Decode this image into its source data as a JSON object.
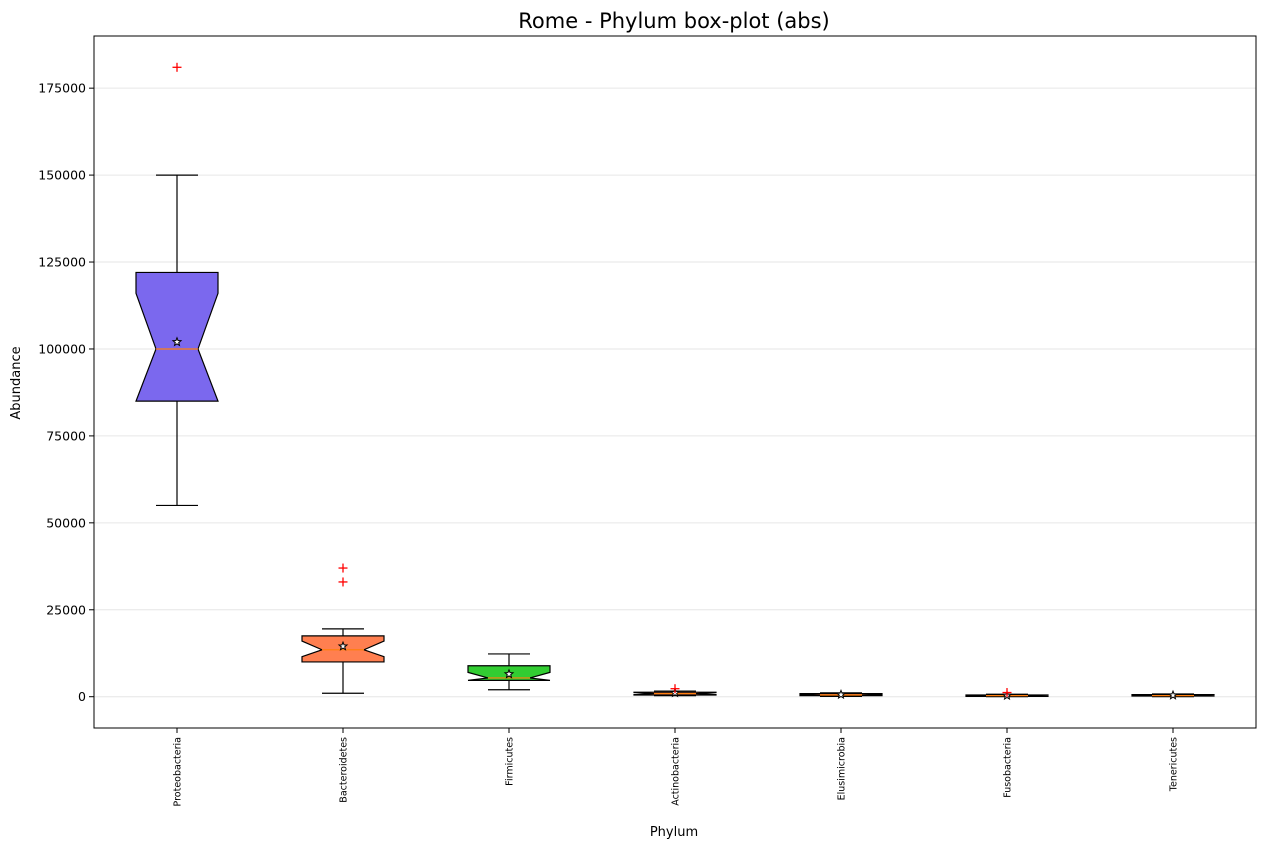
{
  "chart_data": {
    "type": "box",
    "title": "Rome - Phylum box-plot (abs)",
    "xlabel": "Phylum",
    "ylabel": "Abundance",
    "ylim": [
      -9000,
      190000
    ],
    "yticks": [
      0,
      25000,
      50000,
      75000,
      100000,
      125000,
      150000,
      175000
    ],
    "grid": "horizontal",
    "categories": [
      "Proteobacteria",
      "Bacteroidetes",
      "Firmicutes",
      "Actinobacteria",
      "Elusimicrobia",
      "Fusobacteria",
      "Tenericutes"
    ],
    "series": [
      {
        "category": "Proteobacteria",
        "color": "#7b68ee",
        "whisker_low": 55000,
        "q1": 85000,
        "median": 100000,
        "q3": 122000,
        "whisker_high": 150000,
        "mean": 102000,
        "notch_low": 85000,
        "notch_high": 116000,
        "outliers": [
          181000
        ]
      },
      {
        "category": "Bacteroidetes",
        "color": "#ff7f50",
        "whisker_low": 1000,
        "q1": 10000,
        "median": 13500,
        "q3": 17500,
        "whisker_high": 19500,
        "mean": 14500,
        "notch_low": 11500,
        "notch_high": 16000,
        "outliers": [
          33000,
          37000
        ]
      },
      {
        "category": "Firmicutes",
        "color": "#32cd32",
        "whisker_low": 2000,
        "q1": 4700,
        "median": 5400,
        "q3": 8900,
        "whisker_high": 12300,
        "mean": 6500,
        "notch_low": 4700,
        "notch_high": 7000,
        "outliers": []
      },
      {
        "category": "Actinobacteria",
        "color": "#ff7f50",
        "whisker_low": 300,
        "q1": 500,
        "median": 900,
        "q3": 1300,
        "whisker_high": 1600,
        "mean": 1100,
        "notch_low": 600,
        "notch_high": 1200,
        "outliers": [
          2300
        ]
      },
      {
        "category": "Elusimicrobia",
        "color": "#ff7f50",
        "whisker_low": 100,
        "q1": 300,
        "median": 500,
        "q3": 900,
        "whisker_high": 1100,
        "mean": 600,
        "notch_low": 400,
        "notch_high": 700,
        "outliers": []
      },
      {
        "category": "Fusobacteria",
        "color": "#ff7f50",
        "whisker_low": 0,
        "q1": 100,
        "median": 300,
        "q3": 500,
        "whisker_high": 700,
        "mean": 300,
        "notch_low": 200,
        "notch_high": 400,
        "outliers": [
          1200
        ]
      },
      {
        "category": "Tenericutes",
        "color": "#ff7f50",
        "whisker_low": 0,
        "q1": 200,
        "median": 300,
        "q3": 600,
        "whisker_high": 800,
        "mean": 400,
        "notch_low": 250,
        "notch_high": 450,
        "outliers": []
      }
    ],
    "median_color": "#ff7f0e",
    "outlier_color": "#ff0000",
    "outlier_marker": "plus",
    "mean_marker": "star"
  }
}
